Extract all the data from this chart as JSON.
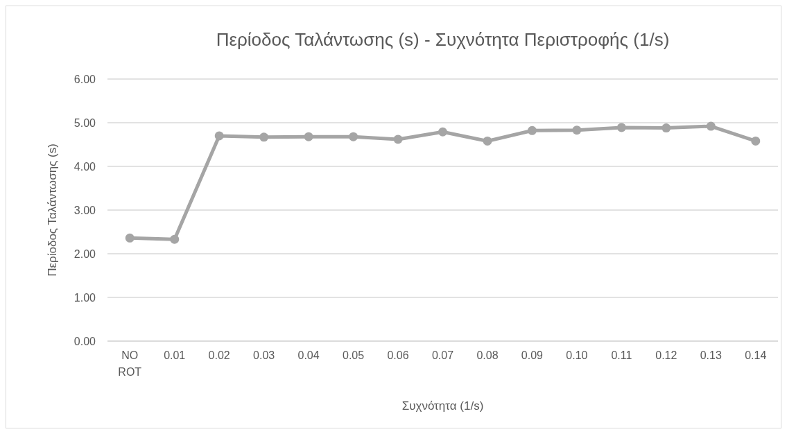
{
  "chart_data": {
    "type": "line",
    "title": "Περίοδος Ταλάντωσης (s) - Συχνότητα Περιστροφής (1/s)",
    "xlabel": "Συχνότητα (1/s)",
    "ylabel": "Περίοδος Ταλάντωσης (s)",
    "categories": [
      "NO ROT",
      "0.01",
      "0.02",
      "0.03",
      "0.04",
      "0.05",
      "0.06",
      "0.07",
      "0.08",
      "0.09",
      "0.10",
      "0.11",
      "0.12",
      "0.13",
      "0.14"
    ],
    "series": [
      {
        "color": "#a5a5a5",
        "values": [
          2.36,
          2.33,
          4.7,
          4.67,
          4.68,
          4.68,
          4.62,
          4.79,
          4.58,
          4.82,
          4.83,
          4.89,
          4.88,
          4.92,
          4.58
        ]
      }
    ],
    "ylim": [
      0,
      6
    ],
    "yticks": [
      {
        "value": 0,
        "label": "0.00"
      },
      {
        "value": 1,
        "label": "1.00"
      },
      {
        "value": 2,
        "label": "2.00"
      },
      {
        "value": 3,
        "label": "3.00"
      },
      {
        "value": 4,
        "label": "4.00"
      },
      {
        "value": 5,
        "label": "5.00"
      },
      {
        "value": 6,
        "label": "6.00"
      }
    ],
    "grid": "y",
    "marker": "circle"
  }
}
